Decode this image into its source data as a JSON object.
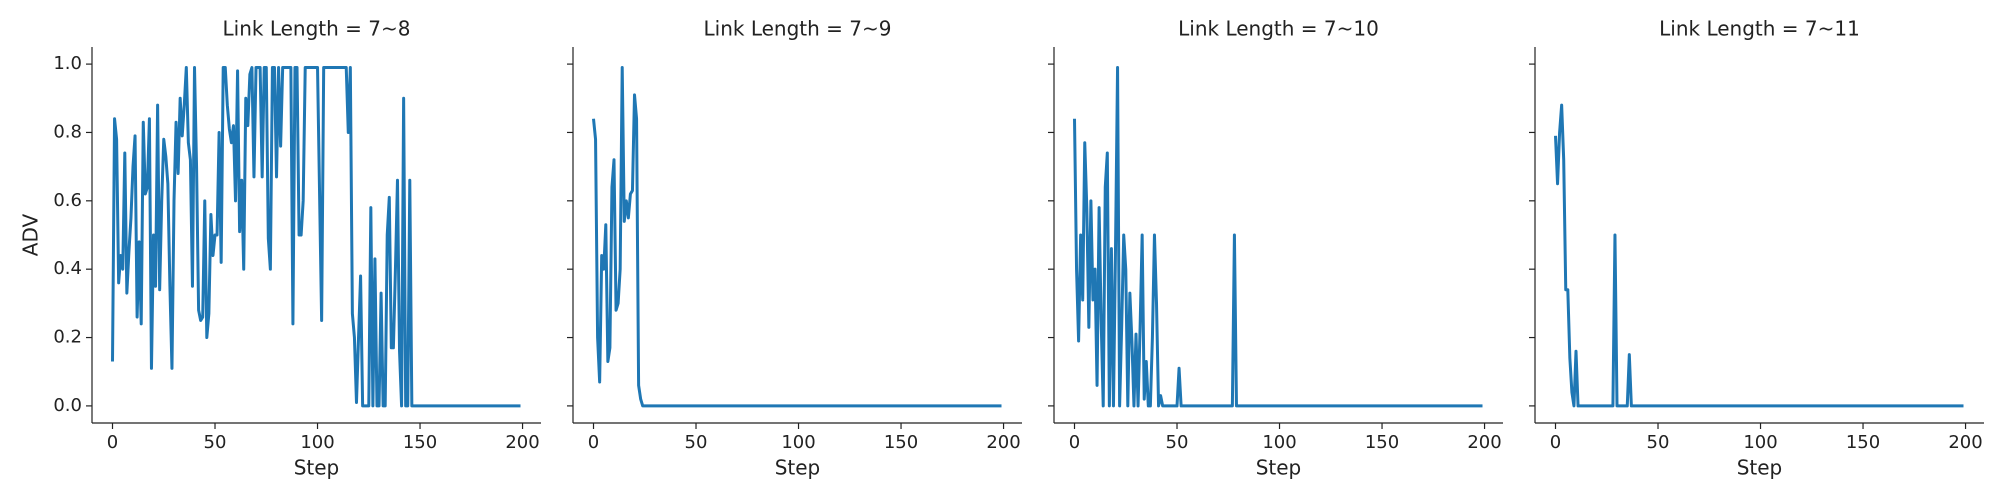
{
  "chart_data": [
    {
      "type": "line",
      "title": "Link Length = 7~8",
      "xlabel": "Step",
      "ylabel": "ADV",
      "xlim": [
        -10,
        209
      ],
      "ylim": [
        -0.05,
        1.05
      ],
      "xticks": [
        0,
        50,
        100,
        150,
        200
      ],
      "yticks": [
        {
          "value": 0,
          "label": "0.0"
        },
        0.2,
        0.4,
        0.6,
        0.8,
        {
          "value": 1,
          "label": "1.0"
        }
      ],
      "series": [
        {
          "name": "ADV",
          "color": "#1f77b4",
          "x": [
            0,
            1,
            2,
            3,
            4,
            5,
            6,
            7,
            8,
            9,
            10,
            11,
            12,
            13,
            14,
            15,
            16,
            17,
            18,
            19,
            20,
            21,
            22,
            23,
            24,
            25,
            26,
            27,
            28,
            29,
            30,
            31,
            32,
            33,
            34,
            35,
            36,
            37,
            38,
            39,
            40,
            41,
            42,
            43,
            44,
            45,
            46,
            47,
            48,
            49,
            50,
            51,
            52,
            53,
            54,
            55,
            56,
            57,
            58,
            59,
            60,
            61,
            62,
            63,
            64,
            65,
            66,
            67,
            68,
            69,
            70,
            71,
            72,
            73,
            74,
            75,
            76,
            77,
            78,
            79,
            80,
            81,
            82,
            83,
            84,
            85,
            86,
            87,
            88,
            89,
            90,
            91,
            92,
            93,
            94,
            95,
            100,
            102,
            103,
            114,
            115,
            116,
            117,
            118,
            119,
            120,
            121,
            122,
            125,
            126,
            127,
            128,
            129,
            130,
            131,
            132,
            133,
            134,
            135,
            136,
            137,
            138,
            139,
            140,
            141,
            142,
            143,
            144,
            145,
            146,
            150,
            199
          ],
          "values": [
            0.13,
            0.84,
            0.78,
            0.36,
            0.44,
            0.4,
            0.74,
            0.33,
            0.45,
            0.55,
            0.7,
            0.79,
            0.26,
            0.48,
            0.24,
            0.83,
            0.62,
            0.64,
            0.84,
            0.11,
            0.5,
            0.35,
            0.88,
            0.34,
            0.6,
            0.78,
            0.73,
            0.65,
            0.35,
            0.11,
            0.6,
            0.83,
            0.68,
            0.9,
            0.79,
            0.88,
            0.99,
            0.77,
            0.72,
            0.35,
            0.99,
            0.7,
            0.28,
            0.25,
            0.26,
            0.6,
            0.2,
            0.27,
            0.56,
            0.44,
            0.5,
            0.5,
            0.8,
            0.42,
            0.99,
            0.99,
            0.88,
            0.81,
            0.77,
            0.82,
            0.6,
            0.98,
            0.51,
            0.66,
            0.4,
            0.9,
            0.82,
            0.97,
            0.99,
            0.67,
            0.99,
            0.99,
            0.99,
            0.67,
            0.99,
            0.99,
            0.49,
            0.4,
            0.99,
            0.99,
            0.67,
            0.99,
            0.76,
            0.99,
            0.99,
            0.99,
            0.99,
            0.99,
            0.24,
            0.99,
            0.99,
            0.5,
            0.5,
            0.6,
            0.99,
            0.99,
            0.99,
            0.25,
            0.99,
            0.99,
            0.8,
            0.99,
            0.27,
            0.2,
            0.01,
            0.2,
            0.38,
            0,
            0,
            0.58,
            0,
            0.43,
            0,
            0,
            0.33,
            0,
            0,
            0.5,
            0.61,
            0.17,
            0.17,
            0.4,
            0.66,
            0.16,
            0,
            0.9,
            0,
            0,
            0.66,
            0,
            0,
            0
          ]
        }
      ]
    },
    {
      "type": "line",
      "title": "Link Length = 7~9",
      "xlabel": "Step",
      "sharey": true,
      "xlim": [
        -10,
        209
      ],
      "ylim": [
        -0.05,
        1.05
      ],
      "xticks": [
        0,
        50,
        100,
        150,
        200
      ],
      "series": [
        {
          "name": "ADV",
          "color": "#1f77b4",
          "x": [
            0,
            1,
            2,
            3,
            4,
            5,
            6,
            7,
            8,
            9,
            10,
            11,
            12,
            13,
            14,
            15,
            16,
            17,
            18,
            19,
            20,
            21,
            22,
            23,
            24,
            199
          ],
          "values": [
            0.84,
            0.78,
            0.2,
            0.07,
            0.44,
            0.4,
            0.53,
            0.13,
            0.17,
            0.64,
            0.72,
            0.28,
            0.3,
            0.4,
            0.99,
            0.54,
            0.6,
            0.55,
            0.62,
            0.63,
            0.91,
            0.84,
            0.06,
            0.02,
            0,
            0
          ]
        }
      ]
    },
    {
      "type": "line",
      "title": "Link Length = 7~10",
      "xlabel": "Step",
      "sharey": true,
      "xlim": [
        -10,
        209
      ],
      "ylim": [
        -0.05,
        1.05
      ],
      "xticks": [
        0,
        50,
        100,
        150,
        200
      ],
      "series": [
        {
          "name": "ADV",
          "color": "#1f77b4",
          "x": [
            0,
            1,
            2,
            3,
            4,
            5,
            6,
            7,
            8,
            9,
            10,
            11,
            12,
            13,
            14,
            15,
            16,
            17,
            18,
            19,
            20,
            21,
            22,
            23,
            24,
            25,
            26,
            27,
            28,
            29,
            30,
            31,
            32,
            33,
            34,
            35,
            36,
            37,
            38,
            39,
            40,
            41,
            42,
            43,
            50,
            51,
            52,
            77,
            78,
            79,
            199
          ],
          "values": [
            0.84,
            0.4,
            0.19,
            0.5,
            0.31,
            0.77,
            0.58,
            0.23,
            0.6,
            0.31,
            0.4,
            0.06,
            0.58,
            0.25,
            0,
            0.64,
            0.74,
            0,
            0.46,
            0,
            0.46,
            0.99,
            0,
            0.23,
            0.5,
            0.4,
            0,
            0.33,
            0.19,
            0,
            0.21,
            0,
            0.23,
            0.5,
            0.02,
            0.13,
            0,
            0,
            0.2,
            0.5,
            0.3,
            0,
            0.03,
            0,
            0,
            0.11,
            0,
            0,
            0.5,
            0,
            0
          ]
        }
      ]
    },
    {
      "type": "line",
      "title": "Link Length = 7~11",
      "xlabel": "Step",
      "sharey": true,
      "xlim": [
        -10,
        209
      ],
      "ylim": [
        -0.05,
        1.05
      ],
      "xticks": [
        0,
        50,
        100,
        150,
        200
      ],
      "series": [
        {
          "name": "ADV",
          "color": "#1f77b4",
          "x": [
            0,
            1,
            2,
            3,
            4,
            5,
            6,
            7,
            8,
            9,
            10,
            11,
            28,
            29,
            30,
            35,
            36,
            37,
            199
          ],
          "values": [
            0.79,
            0.65,
            0.8,
            0.88,
            0.72,
            0.34,
            0.34,
            0.14,
            0.04,
            0,
            0.16,
            0,
            0,
            0.5,
            0,
            0,
            0.15,
            0,
            0
          ]
        }
      ]
    }
  ]
}
